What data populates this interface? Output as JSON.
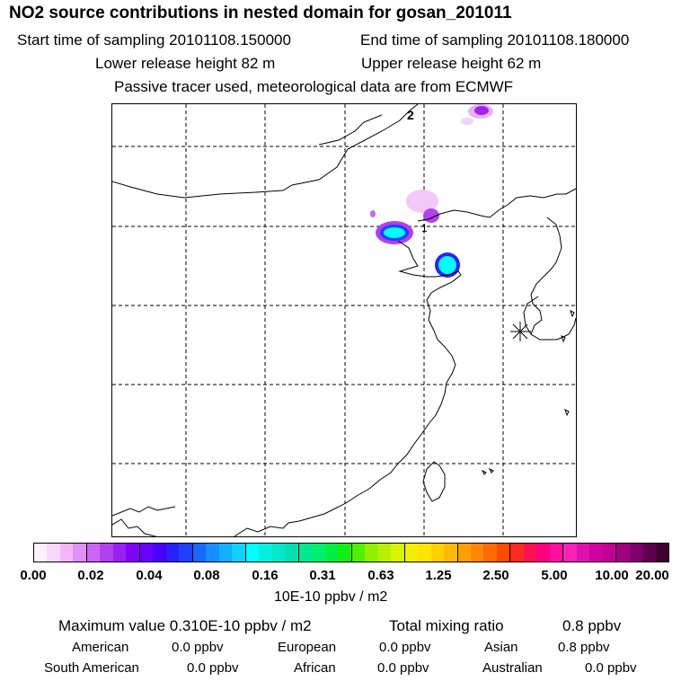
{
  "header": {
    "title": "NO2 source contributions in nested domain for gosan_201011",
    "start_label": "Start time of sampling 20101108.150000",
    "end_label": "End time of sampling 20101108.180000",
    "lower_label": "Lower release height   82 m",
    "upper_label": "Upper release height   62 m",
    "tracer_note": "Passive tracer used, meteorological data are from ECMWF"
  },
  "map": {
    "markers": [
      "2",
      "1"
    ],
    "site_marker": "✳"
  },
  "colorbar": {
    "tick_labels": [
      "0.00",
      "0.02",
      "0.04",
      "0.08",
      "0.16",
      "0.31",
      "0.63",
      "1.25",
      "2.50",
      "5.00",
      "10.00",
      "20.00"
    ],
    "unit": "10E-10 ppbv / m2",
    "colors": [
      "#fff0ff",
      "#fbd6fb",
      "#f3b6f8",
      "#e190f5",
      "#cc66f2",
      "#b040f0",
      "#9a20f0",
      "#8000ff",
      "#6a00ff",
      "#4a00ff",
      "#2a20ff",
      "#1f40ff",
      "#1868ff",
      "#1490ff",
      "#10b0ff",
      "#10d0ff",
      "#00ffff",
      "#00f0e0",
      "#00e8c8",
      "#00e0b0",
      "#00e890",
      "#00ee70",
      "#00f040",
      "#10f010",
      "#50f000",
      "#90f000",
      "#b8f000",
      "#d8f400",
      "#f0f000",
      "#ffe400",
      "#ffd000",
      "#ffba00",
      "#ffa000",
      "#ff8800",
      "#ff6a00",
      "#ff4a00",
      "#ff2a20",
      "#ff1050",
      "#ff0080",
      "#ff10a0",
      "#ff20b8",
      "#e010b0",
      "#d000a0",
      "#c00090",
      "#a00080",
      "#800070",
      "#600050",
      "#400030"
    ]
  },
  "summary": {
    "max_text": "Maximum value  0.310E-10 ppbv / m2",
    "total_label": "Total mixing ratio",
    "total_value": "0.8 ppbv",
    "regions": [
      {
        "name": "American",
        "value": "0.0 ppbv"
      },
      {
        "name": "European",
        "value": "0.0 ppbv"
      },
      {
        "name": "Asian",
        "value": "0.8 ppbv"
      },
      {
        "name": "South American",
        "value": "0.0 ppbv"
      },
      {
        "name": "African",
        "value": "0.0 ppbv"
      },
      {
        "name": "Australian",
        "value": "0.0 ppbv"
      }
    ]
  }
}
